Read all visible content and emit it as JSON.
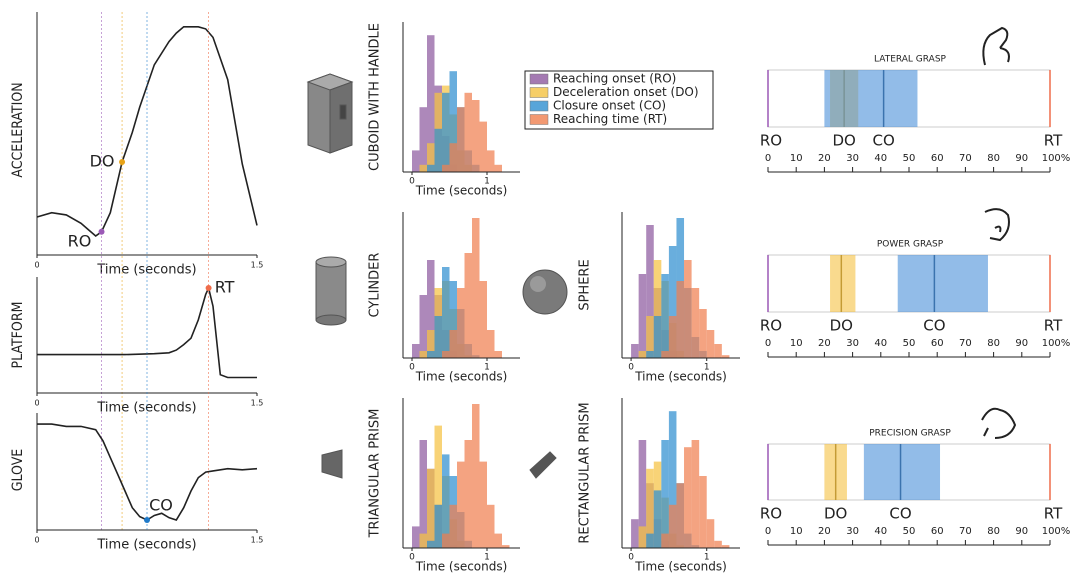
{
  "chart_data": [
    {
      "type": "line",
      "ylabel": "ACCELERATION",
      "xlabel": "Time (seconds)",
      "xlim": [
        0,
        1.5
      ],
      "ylim": [
        -0.08,
        1.07
      ],
      "xticks": [
        0,
        1.5
      ],
      "x": [
        0,
        0.1,
        0.2,
        0.3,
        0.35,
        0.4,
        0.44,
        0.5,
        0.58,
        0.65,
        0.7,
        0.8,
        0.9,
        0.95,
        1.0,
        1.1,
        1.15,
        1.2,
        1.3,
        1.4,
        1.5
      ],
      "values": [
        0.1,
        0.12,
        0.11,
        0.07,
        0.04,
        0.01,
        0.03,
        0.12,
        0.36,
        0.5,
        0.62,
        0.82,
        0.93,
        0.97,
        1.0,
        1.0,
        0.99,
        0.95,
        0.75,
        0.35,
        0.06
      ],
      "color": "#222",
      "annotations": [
        {
          "text": "RO",
          "x": 0.44,
          "color": "#9b59b6"
        },
        {
          "text": "DO",
          "x": 0.58,
          "color": "#e8a317"
        }
      ]
    },
    {
      "type": "line",
      "ylabel": "PLATFORM",
      "xlabel": "Time (seconds)",
      "xlim": [
        0,
        1.5
      ],
      "ylim": [
        -0.15,
        1.12
      ],
      "xticks": [
        0,
        1.5
      ],
      "x": [
        0,
        0.2,
        0.4,
        0.6,
        0.8,
        0.9,
        0.95,
        1.0,
        1.05,
        1.1,
        1.15,
        1.17,
        1.2,
        1.25,
        1.3,
        1.5
      ],
      "values": [
        0.27,
        0.27,
        0.27,
        0.27,
        0.28,
        0.29,
        0.32,
        0.38,
        0.45,
        0.65,
        0.93,
        1.0,
        0.8,
        0.05,
        0.02,
        0.02
      ],
      "color": "#222",
      "annotations": [
        {
          "text": "RT",
          "x": 1.17,
          "color": "#ef6c4a"
        }
      ]
    },
    {
      "type": "line",
      "ylabel": "GLOVE",
      "xlabel": "Time (seconds)",
      "xlim": [
        0,
        1.5
      ],
      "ylim": [
        -0.05,
        1.0
      ],
      "xticks": [
        0,
        1.5
      ],
      "x": [
        0,
        0.1,
        0.2,
        0.3,
        0.4,
        0.45,
        0.5,
        0.55,
        0.6,
        0.65,
        0.7,
        0.75,
        0.8,
        0.85,
        0.9,
        0.95,
        1.0,
        1.05,
        1.1,
        1.15,
        1.2,
        1.3,
        1.4,
        1.5
      ],
      "values": [
        0.9,
        0.9,
        0.88,
        0.88,
        0.85,
        0.75,
        0.6,
        0.45,
        0.3,
        0.15,
        0.07,
        0.04,
        0.08,
        0.1,
        0.06,
        0.04,
        0.15,
        0.3,
        0.42,
        0.47,
        0.48,
        0.5,
        0.49,
        0.5
      ],
      "color": "#222",
      "annotations": [
        {
          "text": "CO",
          "x": 0.75,
          "color": "#1f7ac9"
        }
      ]
    },
    {
      "type": "histogram",
      "label": "CUBOID WITH HANDLE",
      "xlabel": "Time (seconds)",
      "xlim": [
        -0.12,
        1.44
      ],
      "ylim": [
        0,
        1
      ],
      "xticks": [
        0,
        1
      ],
      "bins": [
        -0.1,
        0,
        0.1,
        0.2,
        0.3,
        0.4,
        0.5,
        0.6,
        0.7,
        0.8,
        0.9,
        1.0,
        1.1,
        1.2,
        1.3,
        1.4
      ],
      "series": [
        {
          "values": [
            0,
            0.15,
            0.45,
            0.95,
            0.6,
            0.25,
            0.05,
            0,
            0,
            0,
            0,
            0,
            0,
            0,
            0
          ]
        },
        {
          "values": [
            0,
            0,
            0.05,
            0.2,
            0.55,
            0.6,
            0.4,
            0.15,
            0.05,
            0,
            0,
            0,
            0,
            0,
            0
          ]
        },
        {
          "values": [
            0,
            0,
            0,
            0.05,
            0.3,
            0.55,
            0.7,
            0.45,
            0.15,
            0.05,
            0,
            0,
            0,
            0,
            0
          ]
        },
        {
          "values": [
            0,
            0,
            0,
            0,
            0,
            0.05,
            0.2,
            0.45,
            0.55,
            0.5,
            0.35,
            0.15,
            0.05,
            0,
            0
          ]
        }
      ]
    },
    {
      "type": "histogram",
      "label": "CYLINDER",
      "xlabel": "Time (seconds)",
      "xlim": [
        -0.12,
        1.44
      ],
      "ylim": [
        0,
        1
      ],
      "xticks": [
        0,
        1
      ],
      "bins": [
        -0.1,
        0,
        0.1,
        0.2,
        0.3,
        0.4,
        0.5,
        0.6,
        0.7,
        0.8,
        0.9,
        1.0,
        1.1,
        1.2,
        1.3,
        1.4
      ],
      "series": [
        {
          "values": [
            0,
            0.1,
            0.45,
            0.7,
            0.45,
            0.2,
            0.05,
            0,
            0,
            0,
            0,
            0,
            0,
            0,
            0
          ]
        },
        {
          "values": [
            0,
            0,
            0.05,
            0.2,
            0.5,
            0.55,
            0.35,
            0.1,
            0.02,
            0,
            0,
            0,
            0,
            0,
            0
          ]
        },
        {
          "values": [
            0,
            0,
            0,
            0.05,
            0.3,
            0.65,
            0.55,
            0.35,
            0.1,
            0.02,
            0,
            0,
            0,
            0,
            0
          ]
        },
        {
          "values": [
            0,
            0,
            0,
            0,
            0,
            0.05,
            0.2,
            0.5,
            0.75,
            1.0,
            0.55,
            0.2,
            0.05,
            0,
            0
          ]
        }
      ]
    },
    {
      "type": "histogram",
      "label": "SPHERE",
      "xlabel": "Time (seconds)",
      "xlim": [
        -0.12,
        1.44
      ],
      "ylim": [
        0,
        1
      ],
      "xticks": [
        0,
        1
      ],
      "bins": [
        -0.1,
        0,
        0.1,
        0.2,
        0.3,
        0.4,
        0.5,
        0.6,
        0.7,
        0.8,
        0.9,
        1.0,
        1.1,
        1.2,
        1.3,
        1.4
      ],
      "series": [
        {
          "values": [
            0,
            0.1,
            0.6,
            0.95,
            0.5,
            0.2,
            0.05,
            0,
            0,
            0,
            0,
            0,
            0,
            0,
            0
          ]
        },
        {
          "values": [
            0,
            0,
            0.05,
            0.3,
            0.7,
            0.55,
            0.25,
            0.05,
            0,
            0,
            0,
            0,
            0,
            0,
            0
          ]
        },
        {
          "values": [
            0,
            0,
            0,
            0.05,
            0.3,
            0.6,
            0.8,
            1.0,
            0.5,
            0.15,
            0.05,
            0,
            0,
            0,
            0
          ]
        },
        {
          "values": [
            0,
            0,
            0,
            0,
            0,
            0.05,
            0.3,
            0.55,
            0.7,
            0.5,
            0.35,
            0.2,
            0.1,
            0.02,
            0
          ]
        }
      ]
    },
    {
      "type": "histogram",
      "label": "TRIANGULAR PRISM",
      "xlabel": "Time (seconds)",
      "xlim": [
        -0.12,
        1.44
      ],
      "ylim": [
        0,
        1
      ],
      "xticks": [
        0,
        1
      ],
      "bins": [
        -0.1,
        0,
        0.1,
        0.2,
        0.3,
        0.4,
        0.5,
        0.6,
        0.7,
        0.8,
        0.9,
        1.0,
        1.1,
        1.2,
        1.3,
        1.4
      ],
      "series": [
        {
          "values": [
            0,
            0.15,
            0.75,
            0.55,
            0.3,
            0.1,
            0.02,
            0,
            0,
            0,
            0,
            0,
            0,
            0,
            0
          ]
        },
        {
          "values": [
            0,
            0,
            0.1,
            0.55,
            0.85,
            0.5,
            0.2,
            0.05,
            0,
            0,
            0,
            0,
            0,
            0,
            0
          ]
        },
        {
          "values": [
            0,
            0,
            0,
            0.05,
            0.3,
            0.65,
            0.5,
            0.25,
            0.05,
            0,
            0,
            0,
            0,
            0,
            0
          ]
        },
        {
          "values": [
            0,
            0,
            0,
            0,
            0,
            0.1,
            0.3,
            0.6,
            0.75,
            1.0,
            0.6,
            0.3,
            0.1,
            0.02,
            0
          ]
        }
      ]
    },
    {
      "type": "histogram",
      "label": "RECTANGULAR PRISM",
      "xlabel": "Time (seconds)",
      "xlim": [
        -0.12,
        1.44
      ],
      "ylim": [
        0,
        1
      ],
      "xticks": [
        0,
        1
      ],
      "bins": [
        -0.1,
        0,
        0.1,
        0.2,
        0.3,
        0.4,
        0.5,
        0.6,
        0.7,
        0.8,
        0.9,
        1.0,
        1.1,
        1.2,
        1.3,
        1.4
      ],
      "series": [
        {
          "values": [
            0,
            0.2,
            0.75,
            0.45,
            0.2,
            0.05,
            0,
            0,
            0,
            0,
            0,
            0,
            0,
            0,
            0
          ]
        },
        {
          "values": [
            0,
            0,
            0.15,
            0.55,
            0.6,
            0.35,
            0.1,
            0.02,
            0,
            0,
            0,
            0,
            0,
            0,
            0
          ]
        },
        {
          "values": [
            0,
            0,
            0,
            0.1,
            0.4,
            0.75,
            0.95,
            0.45,
            0.1,
            0.02,
            0,
            0,
            0,
            0,
            0
          ]
        },
        {
          "values": [
            0,
            0,
            0,
            0,
            0,
            0.1,
            0.3,
            0.45,
            0.7,
            0.75,
            0.5,
            0.2,
            0.05,
            0.02,
            0
          ]
        }
      ]
    },
    {
      "type": "range",
      "title": "LATERAL GRASP",
      "xlim": [
        0,
        100
      ],
      "xticks": [
        0,
        10,
        20,
        30,
        40,
        50,
        60,
        70,
        80,
        90,
        {
          "value": 100,
          "label": "100%"
        }
      ],
      "markers": [
        {
          "name": "RO",
          "value": 0,
          "color": "#9b59b6"
        },
        {
          "name": "RT",
          "value": 100,
          "color": "#ef6c4a"
        }
      ],
      "intervals": [
        {
          "name": "DO",
          "low": 22,
          "mid": 27,
          "high": 32,
          "color": "#f5c242"
        },
        {
          "name": "CO",
          "low": 20,
          "mid": 41,
          "high": 53,
          "color": "#4a90d9"
        }
      ]
    },
    {
      "type": "range",
      "title": "POWER GRASP",
      "xlim": [
        0,
        100
      ],
      "xticks": [
        0,
        10,
        20,
        30,
        40,
        50,
        60,
        70,
        80,
        90,
        {
          "value": 100,
          "label": "100%"
        }
      ],
      "markers": [
        {
          "name": "RO",
          "value": 0,
          "color": "#9b59b6"
        },
        {
          "name": "RT",
          "value": 100,
          "color": "#ef6c4a"
        }
      ],
      "intervals": [
        {
          "name": "DO",
          "low": 22,
          "mid": 26,
          "high": 31,
          "color": "#f5c242"
        },
        {
          "name": "CO",
          "low": 46,
          "mid": 59,
          "high": 78,
          "color": "#4a90d9"
        }
      ]
    },
    {
      "type": "range",
      "title": "PRECISION GRASP",
      "xlim": [
        0,
        100
      ],
      "xticks": [
        0,
        10,
        20,
        30,
        40,
        50,
        60,
        70,
        80,
        90,
        {
          "value": 100,
          "label": "100%"
        }
      ],
      "markers": [
        {
          "name": "RO",
          "value": 0,
          "color": "#9b59b6"
        },
        {
          "name": "RT",
          "value": 100,
          "color": "#ef6c4a"
        }
      ],
      "intervals": [
        {
          "name": "DO",
          "low": 20,
          "mid": 24,
          "high": 28,
          "color": "#f5c242"
        },
        {
          "name": "CO",
          "low": 34,
          "mid": 47,
          "high": 61,
          "color": "#4a90d9"
        }
      ]
    }
  ],
  "legend": [
    {
      "name": "Reaching onset (RO)",
      "color": "#8e5a9f"
    },
    {
      "name": "Deceleration onset (DO)",
      "color": "#f5c242"
    },
    {
      "name": "Closure onset (CO)",
      "color": "#2f8fd0"
    },
    {
      "name": "Reaching time (RT)",
      "color": "#f08050"
    }
  ]
}
